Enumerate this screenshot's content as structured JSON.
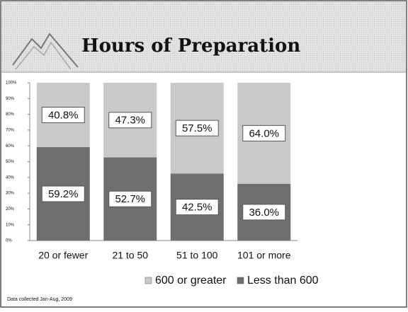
{
  "chart_data": {
    "type": "stacked_bar",
    "title": "Hours of Preparation",
    "footnote": "Data collected Jan-Aug, 2009",
    "categories": [
      "20 or fewer",
      "21 to 50",
      "51 to 100",
      "101 or more"
    ],
    "series": [
      {
        "name": "600 or greater",
        "color": "#c9c9c9",
        "values": [
          40.8,
          47.3,
          57.5,
          64.0
        ],
        "value_labels": [
          "40.8%",
          "47.3%",
          "57.5%",
          "64.0%"
        ]
      },
      {
        "name": "Less than 600",
        "color": "#6f6f6f",
        "values": [
          59.2,
          52.7,
          42.5,
          36.0
        ],
        "value_labels": [
          "59.2%",
          "52.7%",
          "42.5%",
          "36.0%"
        ]
      }
    ],
    "ylim": [
      0,
      100
    ],
    "yticks": [
      {
        "value": 0,
        "label": "0%"
      },
      {
        "value": 10,
        "label": "10%"
      },
      {
        "value": 20,
        "label": "20%"
      },
      {
        "value": 30,
        "label": "30%"
      },
      {
        "value": 40,
        "label": "40%"
      },
      {
        "value": 50,
        "label": "50%"
      },
      {
        "value": 60,
        "label": "60%"
      },
      {
        "value": 70,
        "label": "70%"
      },
      {
        "value": 80,
        "label": "80%"
      },
      {
        "value": 90,
        "label": "90%"
      },
      {
        "value": 100,
        "label": "100%"
      }
    ],
    "legend": "bottom"
  }
}
